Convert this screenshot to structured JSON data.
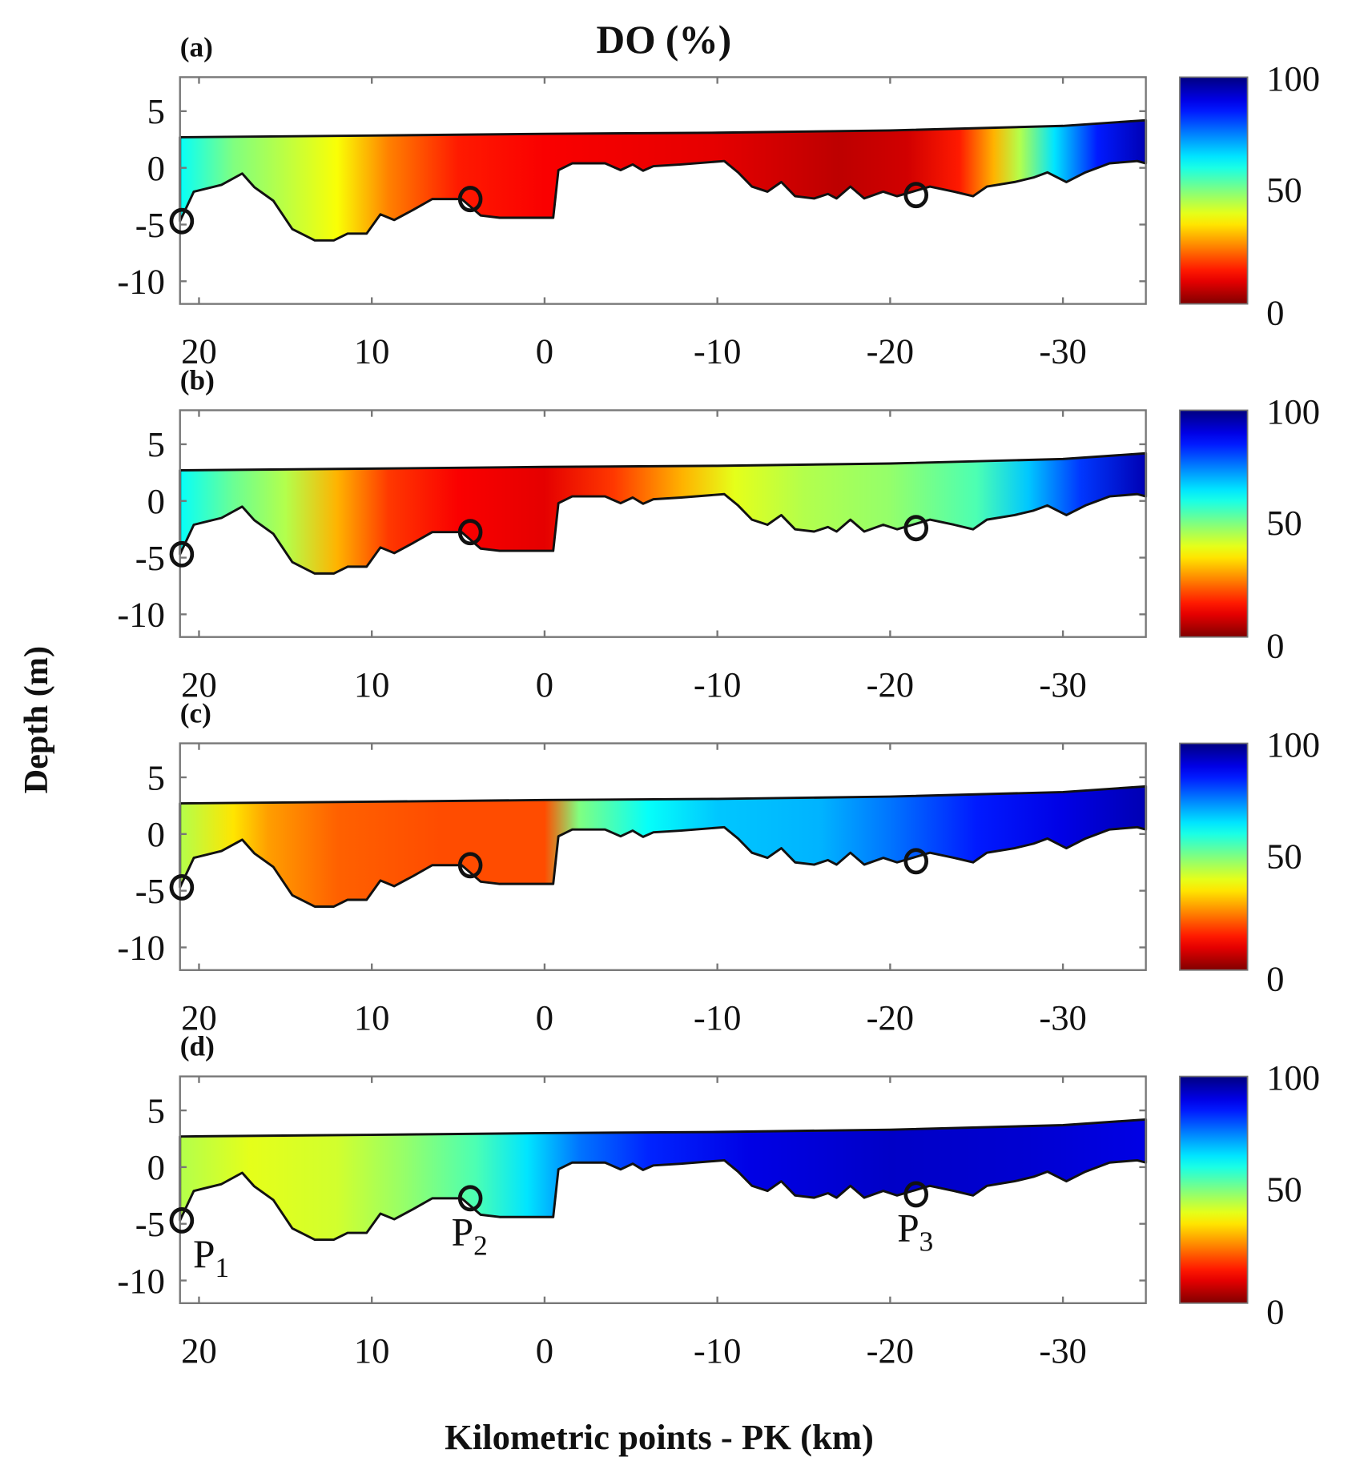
{
  "chart_data": {
    "type": "heatmap",
    "title": "DO (%)",
    "xlabel": "Kilometric points - PK (km)",
    "ylabel": "Depth (m)",
    "xlim": [
      21.1,
      -34.8
    ],
    "ylim": [
      -12,
      8
    ],
    "xticks": [
      20,
      10,
      0,
      -10,
      -20,
      -30
    ],
    "xtick_labels": [
      "20",
      "10",
      "0",
      "-10",
      "-20",
      "-30"
    ],
    "yticks": [
      5,
      0,
      -5,
      -10
    ],
    "ytick_labels": [
      "5",
      "0",
      "-5",
      "-10"
    ],
    "colorbar": {
      "range": [
        0,
        100
      ],
      "ticks": [
        100,
        50,
        0
      ],
      "tick_labels": [
        "100",
        "50",
        "0"
      ],
      "colormap": "jet-reversed"
    },
    "surface": [
      [
        21.1,
        2.7
      ],
      [
        10,
        2.85
      ],
      [
        0,
        3.0
      ],
      [
        -10,
        3.1
      ],
      [
        -20,
        3.3
      ],
      [
        -30,
        3.7
      ],
      [
        -34.8,
        4.2
      ]
    ],
    "bathymetry": [
      [
        21.1,
        -4.7
      ],
      [
        20.3,
        -2.1
      ],
      [
        18.7,
        -1.5
      ],
      [
        17.5,
        -0.5
      ],
      [
        16.8,
        -1.7
      ],
      [
        15.7,
        -2.9
      ],
      [
        14.6,
        -5.4
      ],
      [
        13.3,
        -6.4
      ],
      [
        12.2,
        -6.4
      ],
      [
        11.4,
        -5.8
      ],
      [
        10.3,
        -5.8
      ],
      [
        9.5,
        -4.1
      ],
      [
        8.7,
        -4.6
      ],
      [
        7.6,
        -3.7
      ],
      [
        6.5,
        -2.75
      ],
      [
        4.8,
        -2.75
      ],
      [
        3.7,
        -4.2
      ],
      [
        2.6,
        -4.4
      ],
      [
        -0.5,
        -4.4
      ],
      [
        -0.8,
        -0.2
      ],
      [
        -1.6,
        0.4
      ],
      [
        -3.5,
        0.4
      ],
      [
        -4.4,
        -0.2
      ],
      [
        -5.1,
        0.3
      ],
      [
        -5.7,
        -0.25
      ],
      [
        -6.3,
        0.15
      ],
      [
        -7.9,
        0.3
      ],
      [
        -10.4,
        0.6
      ],
      [
        -11.2,
        -0.4
      ],
      [
        -12.0,
        -1.65
      ],
      [
        -12.9,
        -2.1
      ],
      [
        -13.7,
        -1.25
      ],
      [
        -14.5,
        -2.5
      ],
      [
        -15.6,
        -2.7
      ],
      [
        -16.4,
        -2.3
      ],
      [
        -16.9,
        -2.7
      ],
      [
        -17.7,
        -1.65
      ],
      [
        -18.5,
        -2.7
      ],
      [
        -19.6,
        -2.1
      ],
      [
        -20.4,
        -2.5
      ],
      [
        -21.3,
        -2.1
      ],
      [
        -22.3,
        -1.65
      ],
      [
        -23.7,
        -2.1
      ],
      [
        -24.8,
        -2.5
      ],
      [
        -25.6,
        -1.65
      ],
      [
        -27.2,
        -1.25
      ],
      [
        -28.3,
        -0.85
      ],
      [
        -29.1,
        -0.4
      ],
      [
        -30.2,
        -1.25
      ],
      [
        -31.3,
        -0.4
      ],
      [
        -32.7,
        0.4
      ],
      [
        -34.3,
        0.6
      ],
      [
        -34.8,
        0.4
      ]
    ],
    "stations": [
      {
        "name": "P",
        "sub": "1",
        "km": 21.0,
        "depth": -4.7
      },
      {
        "name": "P",
        "sub": "2",
        "km": 4.3,
        "depth": -2.75
      },
      {
        "name": "P",
        "sub": "3",
        "km": -21.5,
        "depth": -2.4
      }
    ],
    "panels": [
      {
        "label": "(a)",
        "do_profile": [
          [
            21.1,
            62
          ],
          [
            18,
            50
          ],
          [
            14,
            42
          ],
          [
            12,
            38
          ],
          [
            9,
            25
          ],
          [
            5,
            15
          ],
          [
            0,
            12
          ],
          [
            -10,
            10
          ],
          [
            -17,
            6
          ],
          [
            -21,
            8
          ],
          [
            -24,
            15
          ],
          [
            -26,
            30
          ],
          [
            -27.5,
            45
          ],
          [
            -29.5,
            65
          ],
          [
            -32,
            85
          ],
          [
            -34.8,
            95
          ]
        ]
      },
      {
        "label": "(b)",
        "do_profile": [
          [
            21.1,
            62
          ],
          [
            18,
            52
          ],
          [
            15,
            45
          ],
          [
            12,
            30
          ],
          [
            9,
            18
          ],
          [
            5,
            12
          ],
          [
            0,
            10
          ],
          [
            -4,
            18
          ],
          [
            -8,
            30
          ],
          [
            -11,
            40
          ],
          [
            -15,
            45
          ],
          [
            -20,
            48
          ],
          [
            -25,
            55
          ],
          [
            -28,
            68
          ],
          [
            -31,
            82
          ],
          [
            -34.8,
            95
          ]
        ]
      },
      {
        "label": "(c)",
        "do_profile": [
          [
            21.1,
            45
          ],
          [
            18,
            35
          ],
          [
            16,
            28
          ],
          [
            12,
            22
          ],
          [
            6,
            20
          ],
          [
            0,
            20
          ],
          [
            -2,
            50
          ],
          [
            -6,
            62
          ],
          [
            -10,
            68
          ],
          [
            -16,
            70
          ],
          [
            -20,
            76
          ],
          [
            -25,
            85
          ],
          [
            -30,
            90
          ],
          [
            -34.8,
            95
          ]
        ]
      },
      {
        "label": "(d)",
        "do_profile": [
          [
            21.1,
            45
          ],
          [
            17,
            40
          ],
          [
            12,
            42
          ],
          [
            8,
            48
          ],
          [
            4,
            55
          ],
          [
            1,
            65
          ],
          [
            -2,
            76
          ],
          [
            -6,
            84
          ],
          [
            -12,
            90
          ],
          [
            -20,
            93
          ],
          [
            -28,
            92
          ],
          [
            -34.8,
            90
          ]
        ]
      }
    ]
  }
}
